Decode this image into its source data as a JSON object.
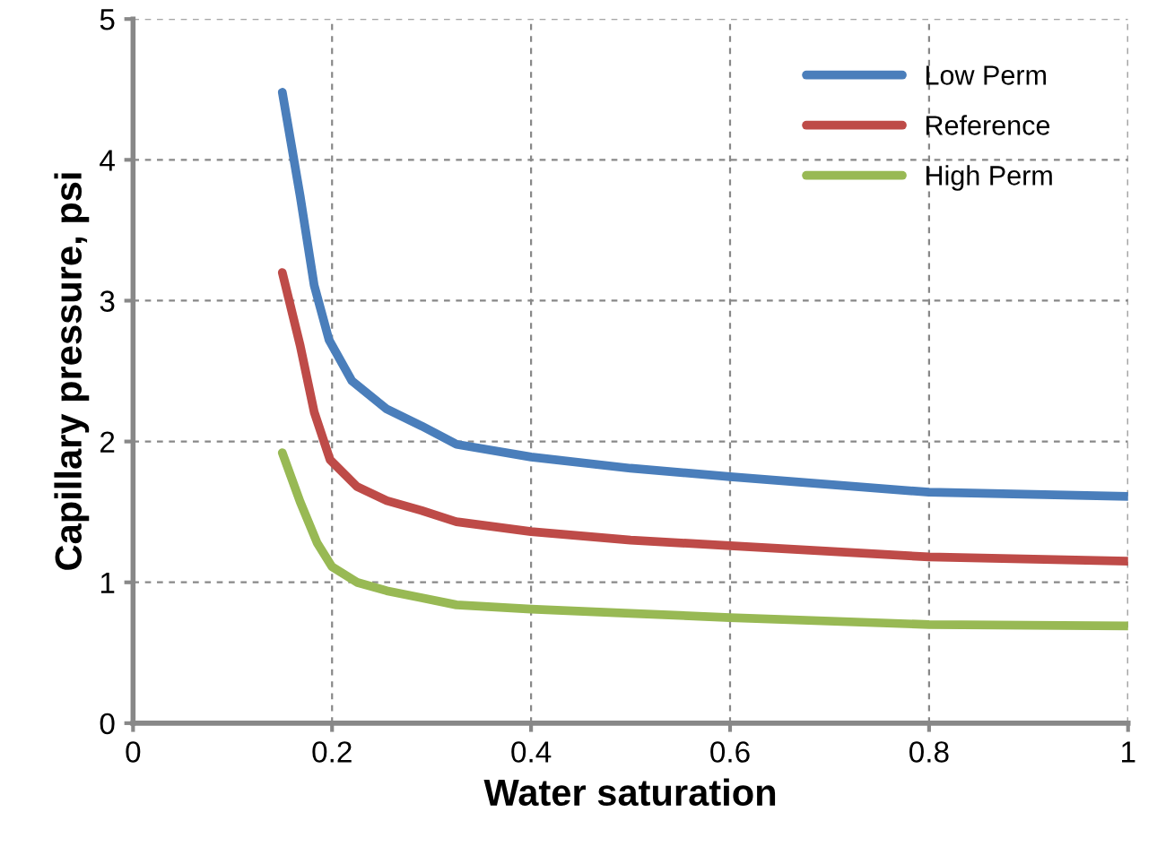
{
  "chart_data": {
    "type": "line",
    "xlabel": "Water saturation",
    "ylabel": "Capillary pressure, psi",
    "xlim": [
      0,
      1
    ],
    "xticks": [
      0,
      0.2,
      0.4,
      0.6,
      0.8,
      1
    ],
    "ylim": [
      0,
      5
    ],
    "yticks": [
      0,
      1,
      2,
      3,
      4,
      5
    ],
    "grid": true,
    "legend": "top right",
    "marker": "none",
    "line_style": "solid",
    "series": [
      {
        "name": "Low Perm",
        "color": "#4a7ebb",
        "x": [
          0.15,
          0.168,
          0.182,
          0.197,
          0.22,
          0.255,
          0.29,
          0.325,
          0.4,
          0.5,
          0.6,
          0.8,
          1.0
        ],
        "values": [
          4.48,
          3.74,
          3.11,
          2.72,
          2.43,
          2.23,
          2.11,
          1.98,
          1.89,
          1.81,
          1.75,
          1.64,
          1.61
        ]
      },
      {
        "name": "Reference",
        "color": "#be4b48",
        "x": [
          0.15,
          0.168,
          0.182,
          0.198,
          0.225,
          0.255,
          0.29,
          0.325,
          0.4,
          0.5,
          0.6,
          0.8,
          1.0
        ],
        "values": [
          3.2,
          2.68,
          2.21,
          1.87,
          1.68,
          1.58,
          1.51,
          1.43,
          1.36,
          1.3,
          1.26,
          1.18,
          1.15
        ]
      },
      {
        "name": "High Perm",
        "color": "#98b954",
        "x": [
          0.15,
          0.168,
          0.185,
          0.2,
          0.225,
          0.255,
          0.29,
          0.325,
          0.4,
          0.5,
          0.6,
          0.8,
          1.0
        ],
        "values": [
          1.92,
          1.57,
          1.28,
          1.11,
          1.0,
          0.94,
          0.89,
          0.84,
          0.81,
          0.78,
          0.75,
          0.7,
          0.69
        ]
      }
    ]
  }
}
